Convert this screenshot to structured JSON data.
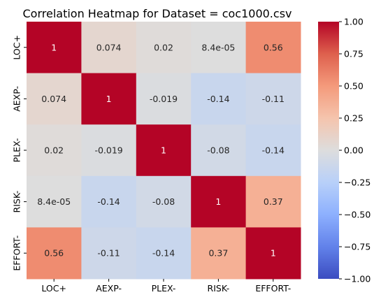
{
  "chart_data": {
    "type": "heatmap",
    "title": "Correlation Heatmap for Dataset = coc1000.csv",
    "row_labels": [
      "LOC+",
      "AEXP-",
      "PLEX-",
      "RISK-",
      "EFFORT-"
    ],
    "col_labels": [
      "LOC+",
      "AEXP-",
      "PLEX-",
      "RISK-",
      "EFFORT-"
    ],
    "values": [
      [
        1,
        0.074,
        0.02,
        8.4e-05,
        0.56
      ],
      [
        0.074,
        1,
        -0.019,
        -0.14,
        -0.11
      ],
      [
        0.02,
        -0.019,
        1,
        -0.08,
        -0.14
      ],
      [
        8.4e-05,
        -0.14,
        -0.08,
        1,
        0.37
      ],
      [
        0.56,
        -0.11,
        -0.14,
        0.37,
        1
      ]
    ],
    "annotations": [
      [
        "1",
        "0.074",
        "0.02",
        "8.4e-05",
        "0.56"
      ],
      [
        "0.074",
        "1",
        "-0.019",
        "-0.14",
        "-0.11"
      ],
      [
        "0.02",
        "-0.019",
        "1",
        "-0.08",
        "-0.14"
      ],
      [
        "8.4e-05",
        "-0.14",
        "-0.08",
        "1",
        "0.37"
      ],
      [
        "0.56",
        "-0.11",
        "-0.14",
        "0.37",
        "1"
      ]
    ],
    "colormap": "coolwarm",
    "colorbar": {
      "vmin": -1.0,
      "vmax": 1.0,
      "ticks": [
        1.0,
        0.75,
        0.5,
        0.25,
        0.0,
        -0.25,
        -0.5,
        -0.75,
        -1.0
      ],
      "tick_labels": [
        "1.00",
        "0.75",
        "0.50",
        "0.25",
        "0.00",
        "−0.25",
        "−0.50",
        "−0.75",
        "−1.00"
      ]
    },
    "colors": {
      "low": "#3b4cc0",
      "mid": "#dddddd",
      "high": "#b40426"
    }
  }
}
